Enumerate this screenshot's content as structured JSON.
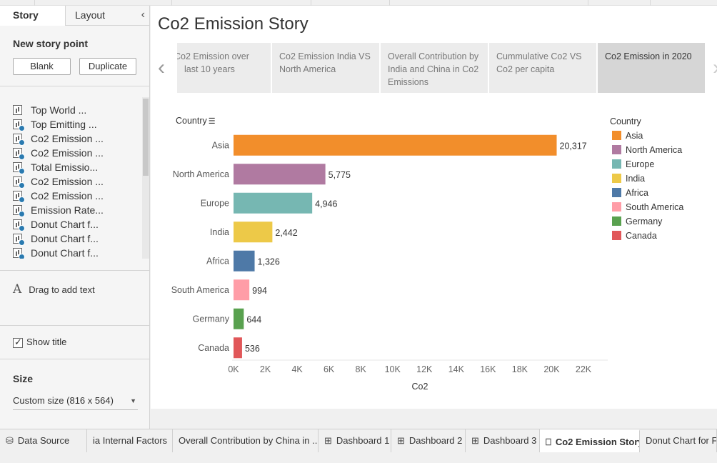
{
  "left_panel": {
    "tab_story": "Story",
    "tab_layout": "Layout",
    "new_story_point": "New story point",
    "blank_button": "Blank",
    "duplicate_button": "Duplicate",
    "sheets": [
      {
        "label": "Top World ...",
        "checked": false
      },
      {
        "label": "Top Emitting ...",
        "checked": true
      },
      {
        "label": "Co2 Emission ...",
        "checked": true
      },
      {
        "label": "Co2 Emission ...",
        "checked": true
      },
      {
        "label": "Total Emissio...",
        "checked": true
      },
      {
        "label": "Co2 Emission ...",
        "checked": true
      },
      {
        "label": "Co2 Emission ...",
        "checked": true
      },
      {
        "label": "Emission Rate...",
        "checked": true
      },
      {
        "label": "Donut Chart f...",
        "checked": true
      },
      {
        "label": "Donut Chart f...",
        "checked": true
      },
      {
        "label": "Donut Chart f...",
        "checked": true
      }
    ],
    "drag_text": "Drag to add text",
    "show_title": "Show title",
    "size_header": "Size",
    "size_value": "Custom size (816 x 564)"
  },
  "story": {
    "title": "Co2 Emission Story",
    "story_points": [
      {
        "label": "Co2 Emission over last 10 years",
        "active": false
      },
      {
        "label": "Co2 Emission India VS North America",
        "active": false
      },
      {
        "label": "Overall Contribution by India and China in Co2 Emissions",
        "active": false
      },
      {
        "label": "Cummulative Co2 VS Co2 per capita",
        "active": false
      },
      {
        "label": "Co2 Emission in 2020",
        "active": true
      }
    ]
  },
  "chart_data": {
    "type": "bar",
    "orientation": "horizontal",
    "dimension_header": "Country",
    "categories": [
      "Asia",
      "North America",
      "Europe",
      "India",
      "Africa",
      "South America",
      "Germany",
      "Canada"
    ],
    "values": [
      20317,
      5775,
      4946,
      2442,
      1326,
      994,
      644,
      536
    ],
    "value_labels": [
      "20,317",
      "5,775",
      "4,946",
      "2,442",
      "1,326",
      "994",
      "644",
      "536"
    ],
    "colors": [
      "#f28e2b",
      "#b07aa1",
      "#76b7b2",
      "#edc948",
      "#4e79a7",
      "#ff9da7",
      "#59a14f",
      "#e15759"
    ],
    "xlabel": "Co2",
    "xlim": [
      0,
      22000
    ],
    "xticks": [
      0,
      2000,
      4000,
      6000,
      8000,
      10000,
      12000,
      14000,
      16000,
      18000,
      20000,
      22000
    ],
    "xtick_labels": [
      "0K",
      "2K",
      "4K",
      "6K",
      "8K",
      "10K",
      "12K",
      "14K",
      "16K",
      "18K",
      "20K",
      "22K"
    ],
    "grid": false,
    "legend": {
      "title": "Country",
      "position": "right",
      "items": [
        "Asia",
        "North America",
        "Europe",
        "India",
        "Africa",
        "South America",
        "Germany",
        "Canada"
      ]
    }
  },
  "bottom_tabs": [
    {
      "label": "Data Source",
      "glyph": "⛁",
      "active": false
    },
    {
      "label": "ia Internal Factors",
      "glyph": "",
      "active": false
    },
    {
      "label": "Overall Contribution by China in ...",
      "glyph": "",
      "active": false
    },
    {
      "label": "Dashboard 1",
      "glyph": "⊞",
      "active": false
    },
    {
      "label": "Dashboard 2",
      "glyph": "⊞",
      "active": false
    },
    {
      "label": "Dashboard 3",
      "glyph": "⊞",
      "active": false
    },
    {
      "label": "Co2 Emission Story",
      "glyph": "⎕",
      "active": true
    },
    {
      "label": "Donut Chart for Fla",
      "glyph": "",
      "active": false
    }
  ]
}
